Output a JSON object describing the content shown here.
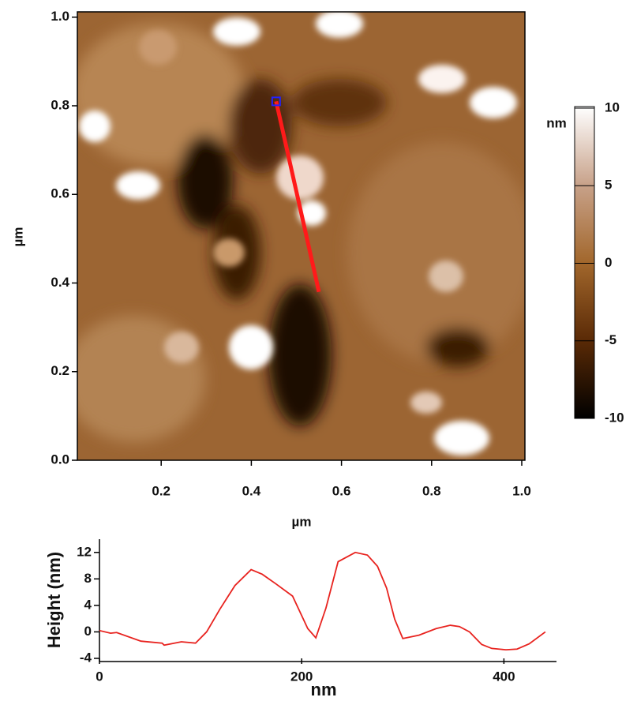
{
  "chart_data": [
    {
      "type": "afm-image",
      "x_label": "µm",
      "y_label": "µm",
      "xlim": [
        0.014,
        1.007
      ],
      "ylim": [
        0,
        1.012
      ],
      "xticks": [
        0.2,
        0.4,
        0.6,
        {
          "value": 0.8,
          "label": "0.8"
        },
        {
          "value": 1.0,
          "label": "1.0"
        }
      ],
      "yticks": [
        {
          "value": 0,
          "label": "0.0"
        },
        0.2,
        0.4,
        0.6,
        0.8,
        {
          "value": 1.0,
          "label": "1.0"
        }
      ],
      "scan_line": {
        "x": [
          0.455,
          0.55
        ],
        "y": [
          0.81,
          0.38
        ],
        "color": "#ff1a1a",
        "marker_color": "#2222ff"
      },
      "colorbar": {
        "label": "nm",
        "clim": [
          -10,
          10
        ],
        "ticks": [
          -10,
          -5,
          0,
          5,
          10
        ]
      }
    },
    {
      "type": "line",
      "x_label": "nm",
      "y_label": "Height (nm)",
      "xlim": [
        0,
        452
      ],
      "ylim": [
        -4,
        14
      ],
      "xticks": [
        0,
        200,
        400
      ],
      "yticks": [
        -4,
        0,
        4,
        8,
        12
      ],
      "series": [
        {
          "color": "#e8231f",
          "x": [
            0,
            11,
            17,
            41,
            62,
            64,
            81,
            95,
            106,
            119,
            134,
            150,
            161,
            175,
            191,
            206,
            214,
            224,
            236,
            253,
            265,
            275,
            284,
            292,
            300,
            316,
            333,
            347,
            356,
            366,
            378,
            388,
            402,
            413,
            425,
            441
          ],
          "values": [
            0.2,
            -0.2,
            -0.1,
            -1.4,
            -1.7,
            -2,
            -1.5,
            -1.7,
            0,
            3.4,
            7,
            9.4,
            8.7,
            7.2,
            5.4,
            0.5,
            -0.9,
            3.6,
            10.6,
            12,
            11.6,
            9.9,
            6.6,
            1.9,
            -1,
            -0.5,
            0.5,
            1,
            0.8,
            0,
            -1.9,
            -2.5,
            -2.7,
            -2.6,
            -1.8,
            0
          ]
        }
      ]
    }
  ]
}
